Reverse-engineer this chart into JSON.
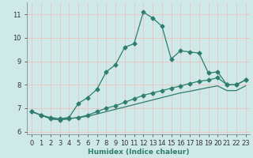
{
  "xlabel": "Humidex (Indice chaleur)",
  "bg_color": "#cfe8e8",
  "grid_color": "#e8c8c8",
  "line_color": "#2e7d6e",
  "xlim": [
    -0.5,
    23.5
  ],
  "ylim": [
    5.9,
    11.5
  ],
  "xticks": [
    0,
    1,
    2,
    3,
    4,
    5,
    6,
    7,
    8,
    9,
    10,
    11,
    12,
    13,
    14,
    15,
    16,
    17,
    18,
    19,
    20,
    21,
    22,
    23
  ],
  "yticks": [
    6,
    7,
    8,
    9,
    10,
    11
  ],
  "line1_x": [
    0,
    1,
    2,
    3,
    4,
    5,
    6,
    7,
    8,
    9,
    10,
    11,
    12,
    13,
    14,
    15,
    16,
    17,
    18,
    19,
    20,
    21,
    22,
    23
  ],
  "line1_y": [
    6.85,
    6.7,
    6.6,
    6.55,
    6.6,
    7.2,
    7.45,
    7.8,
    8.55,
    8.85,
    9.6,
    9.75,
    11.1,
    10.85,
    10.5,
    9.1,
    9.45,
    9.4,
    9.35,
    8.5,
    8.55,
    8.0,
    8.0,
    8.2
  ],
  "line2_x": [
    0,
    1,
    2,
    3,
    4,
    5,
    6,
    7,
    8,
    9,
    10,
    11,
    12,
    13,
    14,
    15,
    16,
    17,
    18,
    19,
    20,
    21,
    22,
    23
  ],
  "line2_y": [
    6.85,
    6.7,
    6.55,
    6.5,
    6.55,
    6.6,
    6.7,
    6.85,
    7.0,
    7.1,
    7.25,
    7.4,
    7.55,
    7.65,
    7.75,
    7.85,
    7.95,
    8.05,
    8.15,
    8.2,
    8.3,
    8.0,
    8.0,
    8.2
  ],
  "line3_x": [
    0,
    1,
    2,
    3,
    4,
    5,
    6,
    7,
    8,
    9,
    10,
    11,
    12,
    13,
    14,
    15,
    16,
    17,
    18,
    19,
    20,
    21,
    22,
    23
  ],
  "line3_y": [
    6.85,
    6.7,
    6.55,
    6.5,
    6.55,
    6.6,
    6.65,
    6.75,
    6.85,
    6.95,
    7.05,
    7.15,
    7.25,
    7.35,
    7.45,
    7.55,
    7.65,
    7.72,
    7.8,
    7.88,
    7.95,
    7.75,
    7.75,
    7.95
  ]
}
